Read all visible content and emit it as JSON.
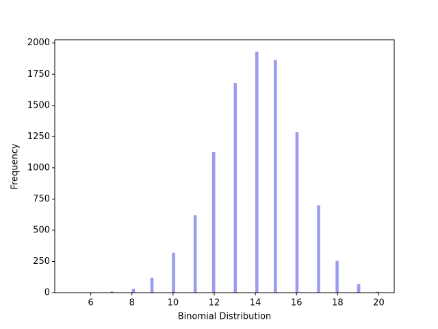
{
  "chart_data": {
    "type": "histogram",
    "xlabel": "Binomial Distribution",
    "ylabel": "Frequency",
    "color": "#9999ff",
    "bins": [
      5,
      5.15,
      5.3,
      5.45,
      5.6,
      5.75,
      5.9,
      6.05,
      6.2,
      6.35,
      6.5,
      6.65,
      6.8,
      6.95,
      7.1,
      7.25,
      7.4,
      7.55,
      7.7,
      7.85,
      8,
      8.15,
      8.3,
      8.45,
      8.6,
      8.75,
      8.9,
      9.05,
      9.2,
      9.35,
      9.5,
      9.65,
      9.8,
      9.95,
      10.1,
      10.25,
      10.4,
      10.55,
      10.7,
      10.85,
      11,
      11.15,
      11.3,
      11.45,
      11.6,
      11.75,
      11.9,
      12.05,
      12.2,
      12.35,
      12.5,
      12.65,
      12.8,
      12.95,
      13.1,
      13.25,
      13.4,
      13.55,
      13.7,
      13.85,
      14,
      14.15,
      14.3,
      14.45,
      14.6,
      14.75,
      14.9,
      15.05,
      15.2,
      15.35,
      15.5,
      15.65,
      15.8,
      15.95,
      16.1,
      16.25,
      16.4,
      16.55,
      16.7,
      16.85,
      17,
      17.15,
      17.3,
      17.45,
      17.6,
      17.75,
      17.9,
      18.05,
      18.2,
      18.35,
      18.5,
      18.65,
      18.8,
      18.95,
      19.1,
      19.25,
      19.4,
      19.55,
      19.7,
      19.85,
      20
    ],
    "counts": [
      1,
      0,
      0,
      0,
      0,
      0,
      2,
      0,
      0,
      0,
      0,
      0,
      0,
      10,
      0,
      0,
      0,
      0,
      0,
      0,
      30,
      0,
      0,
      0,
      0,
      0,
      120,
      0,
      0,
      0,
      0,
      0,
      0,
      320,
      0,
      0,
      0,
      0,
      0,
      0,
      620,
      0,
      0,
      0,
      0,
      0,
      1125,
      0,
      0,
      0,
      0,
      0,
      0,
      1680,
      0,
      0,
      0,
      0,
      0,
      0,
      1930,
      0,
      0,
      0,
      0,
      0,
      1865,
      0,
      0,
      0,
      0,
      0,
      0,
      1285,
      0,
      0,
      0,
      0,
      0,
      0,
      700,
      0,
      0,
      0,
      0,
      0,
      255,
      0,
      0,
      0,
      0,
      0,
      0,
      70,
      0,
      0,
      0,
      0,
      0,
      8
    ],
    "xlim": [
      4.25,
      20.75
    ],
    "ylim": [
      0,
      2026
    ],
    "xticks": [
      6,
      8,
      10,
      12,
      14,
      16,
      18,
      20
    ],
    "yticks": [
      0,
      250,
      500,
      750,
      1000,
      1250,
      1500,
      1750,
      2000
    ]
  }
}
